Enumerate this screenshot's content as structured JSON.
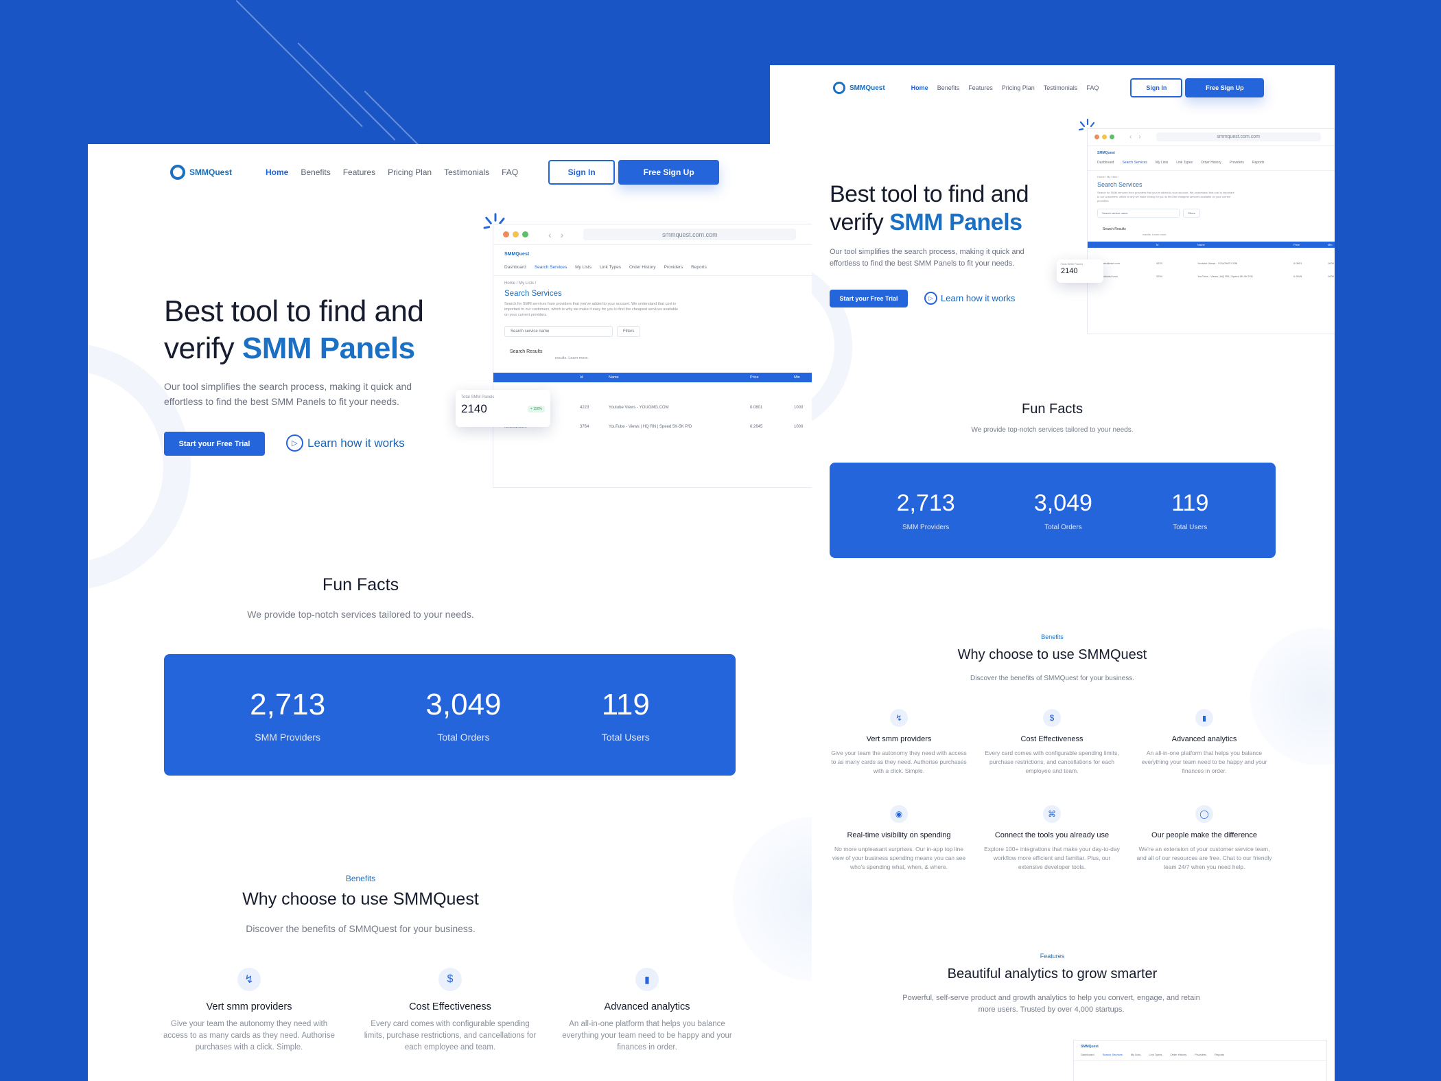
{
  "colors": {
    "background": "#1a55c6",
    "accent": "#2565dc",
    "brand": "#1b70c4"
  },
  "brand": {
    "name": "SMMQuest",
    "icon": "logo-icon"
  },
  "nav": {
    "items": [
      "Home",
      "Benefits",
      "Features",
      "Pricing Plan",
      "Testimonials",
      "FAQ"
    ],
    "sign_in": "Sign In",
    "sign_up": "Free Sign Up"
  },
  "hero": {
    "title_line1": "Best tool to find and",
    "title_line2_prefix": "verify ",
    "title_accent": "SMM Panels",
    "subtitle": "Our tool simplifies the search process, making it quick and effortless to find the best SMM Panels to fit your needs.",
    "cta": "Start your Free Trial",
    "learn": "Learn how it works"
  },
  "mockup": {
    "url": "smmquest.com.com",
    "brand": "SMMQuest",
    "tabs": [
      "Dashboard",
      "Search Services",
      "My Lists",
      "Link Types",
      "Order History",
      "Providers",
      "Reports"
    ],
    "breadcrumb": "Home / My Lists /",
    "title": "Search Services",
    "desc": "Search for SMM services from providers that you've added to your account. We understand that cost is important to our customers, which is why we make it easy for you to find the cheapest services available on your current providers.",
    "search_placeholder": "Search service name",
    "filters": "Filters",
    "results_label": "Search Results",
    "results_note": "results. Learn more.",
    "headers": [
      "Id",
      "Name",
      "Price",
      "Min"
    ],
    "rows": [
      {
        "provider": "jeeakeen.com",
        "id": "4223",
        "name": "Youtube Views - YOUOMG.COM",
        "price": "0.0801",
        "min": "1000"
      },
      {
        "provider": "followiz.com",
        "id": "3764",
        "name": "YouTube - Views | HQ RN | Speed 5K-5K P/D",
        "price": "0.2645",
        "min": "1000"
      }
    ],
    "stat_label": "Total SMM Panels",
    "stat_value": "2140",
    "stat_badge": "+ 150%"
  },
  "fun_facts": {
    "title": "Fun Facts",
    "subtitle": "We provide top-notch services tailored to your needs.",
    "items": [
      {
        "value": "2,713",
        "label": "SMM Providers"
      },
      {
        "value": "3,049",
        "label": "Total Orders"
      },
      {
        "value": "119",
        "label": "Total Users"
      }
    ]
  },
  "benefits": {
    "tag": "Benefits",
    "title": "Why choose to use SMMQuest",
    "subtitle": "Discover the benefits of SMMQuest for your business.",
    "items": [
      {
        "icon": "bolt-icon",
        "title": "Vert smm providers",
        "desc": "Give your team the autonomy they need with access to as many cards as they need. Authorise purchases with a click. Simple."
      },
      {
        "icon": "dollar-icon",
        "title": "Cost Effectiveness",
        "desc": "Every card comes with configurable spending limits, purchase restrictions, and cancellations for each employee and team."
      },
      {
        "icon": "bar-chart-icon",
        "title": "Advanced analytics",
        "desc": "An all-in-one platform that helps you balance everything your team need to be happy and your finances in order."
      },
      {
        "icon": "eye-icon",
        "title": "Real-time visibility on spending",
        "desc": "No more unpleasant surprises. Our in-app top line view of your business spending means you can see who's spending what, when, & where."
      },
      {
        "icon": "command-icon",
        "title": "Connect the tools you already use",
        "desc": "Explore 100+ integrations that make your day-to-day workflow more efficient and familiar. Plus, our extensive developer tools."
      },
      {
        "icon": "chat-icon",
        "title": "Our people make the difference",
        "desc": "We're an extension of your customer service team, and all of our resources are free. Chat to our friendly team 24/7 when you need help."
      }
    ]
  },
  "features": {
    "tag": "Features",
    "title": "Beautiful analytics to grow smarter",
    "subtitle": "Powerful, self-serve product and growth analytics to help you convert, engage, and retain more users. Trusted by over 4,000 startups."
  }
}
